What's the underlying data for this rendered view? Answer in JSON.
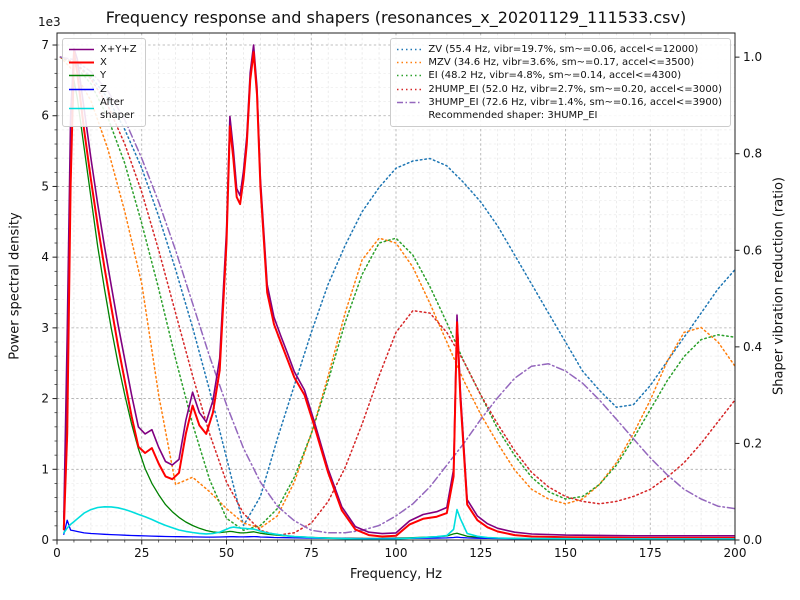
{
  "chart_data": {
    "type": "line",
    "title": "Frequency response and shapers (resonances_x_20201129_111533.csv)",
    "recommended_shaper": "3HUMP_EI",
    "grid": {
      "major": true,
      "minor": true
    },
    "x_axis": {
      "label": "Frequency, Hz",
      "min": 0,
      "max": 200,
      "minor_step": 5,
      "ticks": [
        0,
        25,
        50,
        75,
        100,
        125,
        150,
        175,
        200
      ],
      "tick_labels": [
        "0",
        "25",
        "50",
        "75",
        "100",
        "125",
        "150",
        "175",
        "200"
      ]
    },
    "y_axis_left": {
      "label": "Power spectral density",
      "offset_text": "1e3",
      "min": 0,
      "max": 7170,
      "minor_step": 200,
      "ticks": [
        0,
        1000,
        2000,
        3000,
        4000,
        5000,
        6000,
        7000
      ],
      "tick_labels": [
        "0",
        "1",
        "2",
        "3",
        "4",
        "5",
        "6",
        "7"
      ]
    },
    "y_axis_right": {
      "label": "Shaper vibration reduction (ratio)",
      "min": 0,
      "max": 1.05,
      "ticks": [
        0,
        0.2,
        0.4,
        0.6,
        0.8,
        1.0
      ],
      "tick_labels": [
        "0.0",
        "0.2",
        "0.4",
        "0.6",
        "0.8",
        "1.0"
      ]
    },
    "x_psd": [
      2,
      3,
      4,
      5,
      6,
      8,
      10,
      12,
      14,
      16,
      18,
      20,
      22,
      24,
      26,
      28,
      30,
      32,
      34,
      36,
      38,
      40,
      42,
      44,
      46,
      48,
      50,
      51,
      52,
      53,
      54,
      55,
      56,
      57,
      58,
      59,
      60,
      62,
      64,
      66,
      68,
      70,
      73,
      76,
      80,
      84,
      88,
      92,
      96,
      100,
      104,
      108,
      112,
      115,
      117,
      118,
      119,
      121,
      124,
      127,
      130,
      135,
      140,
      150,
      160,
      170,
      180,
      190,
      200
    ],
    "x_shapers": [
      1,
      5,
      10,
      15,
      20,
      25,
      30,
      35,
      40,
      45,
      50,
      55,
      60,
      65,
      70,
      75,
      80,
      85,
      90,
      95,
      100,
      105,
      110,
      115,
      120,
      125,
      130,
      135,
      140,
      145,
      150,
      155,
      160,
      165,
      170,
      175,
      180,
      185,
      190,
      195,
      200
    ],
    "series": [
      {
        "name": "ZV",
        "axis": "right",
        "color": "#1f77b4",
        "style": "dotted",
        "width": 1.5,
        "x_ref": "x_shapers",
        "y": [
          1.0,
          0.99,
          0.96,
          0.915,
          0.85,
          0.77,
          0.67,
          0.56,
          0.44,
          0.31,
          0.17,
          0.03,
          0.09,
          0.21,
          0.32,
          0.43,
          0.53,
          0.61,
          0.68,
          0.73,
          0.77,
          0.785,
          0.79,
          0.775,
          0.74,
          0.7,
          0.65,
          0.59,
          0.53,
          0.47,
          0.41,
          0.35,
          0.31,
          0.275,
          0.28,
          0.32,
          0.37,
          0.42,
          0.47,
          0.52,
          0.56
        ]
      },
      {
        "name": "MZV",
        "axis": "right",
        "color": "#ff7f0e",
        "style": "dotted",
        "width": 1.5,
        "x_ref": "x_shapers",
        "y": [
          1.0,
          0.97,
          0.91,
          0.81,
          0.68,
          0.53,
          0.3,
          0.115,
          0.13,
          0.1,
          0.065,
          0.035,
          0.025,
          0.05,
          0.12,
          0.22,
          0.34,
          0.47,
          0.58,
          0.625,
          0.615,
          0.565,
          0.49,
          0.41,
          0.33,
          0.26,
          0.2,
          0.145,
          0.105,
          0.085,
          0.075,
          0.085,
          0.115,
          0.16,
          0.22,
          0.29,
          0.37,
          0.43,
          0.44,
          0.41,
          0.36
        ]
      },
      {
        "name": "EI",
        "axis": "right",
        "color": "#2ca02c",
        "style": "dotted",
        "width": 1.5,
        "x_ref": "x_shapers",
        "y": [
          1.0,
          0.985,
          0.945,
          0.875,
          0.78,
          0.655,
          0.52,
          0.375,
          0.24,
          0.125,
          0.045,
          0.02,
          0.03,
          0.065,
          0.13,
          0.22,
          0.33,
          0.45,
          0.55,
          0.615,
          0.625,
          0.59,
          0.525,
          0.45,
          0.37,
          0.3,
          0.23,
          0.175,
          0.13,
          0.1,
          0.085,
          0.09,
          0.115,
          0.155,
          0.21,
          0.27,
          0.33,
          0.38,
          0.415,
          0.425,
          0.42
        ]
      },
      {
        "name": "2HUMP_EI",
        "axis": "right",
        "color": "#d62728",
        "style": "dotted",
        "width": 1.5,
        "x_ref": "x_shapers",
        "y": [
          1.0,
          0.99,
          0.955,
          0.9,
          0.82,
          0.72,
          0.6,
          0.47,
          0.34,
          0.22,
          0.12,
          0.055,
          0.02,
          0.01,
          0.015,
          0.035,
          0.08,
          0.15,
          0.24,
          0.34,
          0.43,
          0.475,
          0.47,
          0.43,
          0.37,
          0.3,
          0.24,
          0.185,
          0.14,
          0.11,
          0.09,
          0.08,
          0.075,
          0.08,
          0.09,
          0.105,
          0.13,
          0.16,
          0.2,
          0.245,
          0.29
        ]
      },
      {
        "name": "3HUMP_EI",
        "axis": "right",
        "color": "#9467bd",
        "style": "dashdot",
        "width": 1.5,
        "x_ref": "x_shapers",
        "y": [
          1.0,
          0.995,
          0.97,
          0.93,
          0.87,
          0.79,
          0.7,
          0.6,
          0.49,
          0.38,
          0.28,
          0.19,
          0.12,
          0.07,
          0.04,
          0.02,
          0.015,
          0.015,
          0.02,
          0.03,
          0.05,
          0.075,
          0.11,
          0.155,
          0.2,
          0.25,
          0.295,
          0.335,
          0.36,
          0.365,
          0.35,
          0.325,
          0.29,
          0.25,
          0.21,
          0.17,
          0.135,
          0.105,
          0.085,
          0.07,
          0.065
        ]
      },
      {
        "name": "Y",
        "axis": "left",
        "color": "#008000",
        "style": "solid",
        "width": 1.3,
        "x_ref": "x_psd",
        "y": [
          200,
          2100,
          5300,
          6500,
          6250,
          5550,
          4850,
          4150,
          3550,
          3000,
          2500,
          2050,
          1640,
          1290,
          1010,
          800,
          640,
          500,
          400,
          320,
          255,
          205,
          165,
          135,
          115,
          105,
          115,
          122,
          118,
          108,
          102,
          100,
          104,
          110,
          116,
          106,
          96,
          82,
          72,
          63,
          56,
          49,
          42,
          36,
          30,
          26,
          24,
          22,
          22,
          25,
          31,
          38,
          46,
          56,
          86,
          96,
          82,
          52,
          41,
          33,
          27,
          22,
          20,
          18,
          16,
          15,
          15,
          15,
          15
        ]
      },
      {
        "name": "Z",
        "axis": "left",
        "color": "#0000ff",
        "style": "solid",
        "width": 1.3,
        "x_ref": "x_psd",
        "y": [
          80,
          280,
          140,
          130,
          120,
          100,
          92,
          86,
          80,
          76,
          72,
          68,
          64,
          61,
          58,
          55,
          53,
          50,
          48,
          47,
          45,
          44,
          42,
          41,
          41,
          42,
          45,
          47,
          46,
          45,
          44,
          44,
          45,
          46,
          48,
          46,
          43,
          39,
          36,
          34,
          32,
          30,
          28,
          26,
          24,
          22,
          21,
          20,
          20,
          21,
          23,
          25,
          27,
          29,
          36,
          41,
          36,
          29,
          25,
          23,
          21,
          19,
          18,
          17,
          16,
          15,
          15,
          14,
          14
        ]
      },
      {
        "name": "X+Y+Z",
        "axis": "left",
        "color": "#800080",
        "style": "solid",
        "width": 1.6,
        "x_ref": "x_psd",
        "y": [
          300,
          2900,
          6000,
          6950,
          6800,
          6100,
          5400,
          4750,
          4150,
          3600,
          3050,
          2550,
          2050,
          1600,
          1500,
          1560,
          1310,
          1110,
          1060,
          1140,
          1690,
          2090,
          1800,
          1670,
          1970,
          2570,
          4370,
          5990,
          5530,
          4970,
          4870,
          5220,
          5710,
          6610,
          7000,
          6400,
          5110,
          3610,
          3150,
          2890,
          2640,
          2380,
          2120,
          1660,
          1000,
          470,
          190,
          110,
          90,
          100,
          270,
          360,
          400,
          460,
          1000,
          3180,
          2100,
          570,
          340,
          230,
          165,
          110,
          85,
          70,
          65,
          60,
          60,
          60,
          60
        ]
      },
      {
        "name": "X",
        "axis": "left",
        "color": "#ff0000",
        "style": "solid",
        "width": 2,
        "x_ref": "x_psd",
        "y": [
          150,
          1500,
          5000,
          6900,
          6600,
          5800,
          5100,
          4450,
          3850,
          3300,
          2750,
          2250,
          1750,
          1320,
          1230,
          1300,
          1080,
          900,
          860,
          950,
          1500,
          1900,
          1620,
          1500,
          1800,
          2400,
          4200,
          5850,
          5400,
          4850,
          4750,
          5100,
          5600,
          6500,
          6900,
          6300,
          5000,
          3500,
          3050,
          2800,
          2550,
          2300,
          2050,
          1600,
          950,
          420,
          150,
          70,
          50,
          60,
          220,
          300,
          330,
          380,
          900,
          3080,
          2000,
          500,
          280,
          180,
          120,
          70,
          50,
          40,
          35,
          30,
          30,
          30,
          30
        ]
      },
      {
        "name": "After shaper",
        "axis": "left",
        "color": "#00dede",
        "style": "solid",
        "width": 1.6,
        "x_ref": "x_psd",
        "y": [
          100,
          170,
          220,
          260,
          300,
          380,
          430,
          460,
          470,
          468,
          455,
          432,
          400,
          362,
          330,
          290,
          246,
          206,
          172,
          142,
          122,
          106,
          93,
          86,
          92,
          112,
          152,
          172,
          182,
          176,
          170,
          166,
          161,
          158,
          154,
          141,
          126,
          101,
          86,
          72,
          60,
          50,
          41,
          33,
          25,
          20,
          16,
          14,
          14,
          16,
          26,
          36,
          46,
          62,
          150,
          430,
          300,
          92,
          52,
          36,
          28,
          22,
          20,
          18,
          16,
          15,
          15,
          15,
          15
        ]
      }
    ],
    "legend_left": [
      {
        "label": "X+Y+Z",
        "color": "#800080",
        "style": "solid",
        "width": 1.6
      },
      {
        "label": "X",
        "color": "#ff0000",
        "style": "solid",
        "width": 2
      },
      {
        "label": "Y",
        "color": "#008000",
        "style": "solid",
        "width": 1.4
      },
      {
        "label": "Z",
        "color": "#0000ff",
        "style": "solid",
        "width": 1.4
      },
      {
        "label": "After\nshaper",
        "color": "#00dede",
        "style": "solid",
        "width": 1.6
      }
    ],
    "legend_right": [
      {
        "label": "ZV (55.4 Hz, vibr=19.7%, sm~=0.06, accel<=12000)",
        "color": "#1f77b4",
        "style": "dotted"
      },
      {
        "label": "MZV (34.6 Hz, vibr=3.6%, sm~=0.17, accel<=3500)",
        "color": "#ff7f0e",
        "style": "dotted"
      },
      {
        "label": "EI (48.2 Hz, vibr=4.8%, sm~=0.14, accel<=4300)",
        "color": "#2ca02c",
        "style": "dotted"
      },
      {
        "label": "2HUMP_EI (52.0 Hz, vibr=2.7%, sm~=0.20, accel<=3000)",
        "color": "#d62728",
        "style": "dotted"
      },
      {
        "label": "3HUMP_EI (72.6 Hz, vibr=1.4%, sm~=0.16, accel<=3900)",
        "color": "#9467bd",
        "style": "dashdot"
      },
      {
        "label": "Recommended shaper: 3HUMP_EI",
        "style": "none"
      }
    ]
  }
}
